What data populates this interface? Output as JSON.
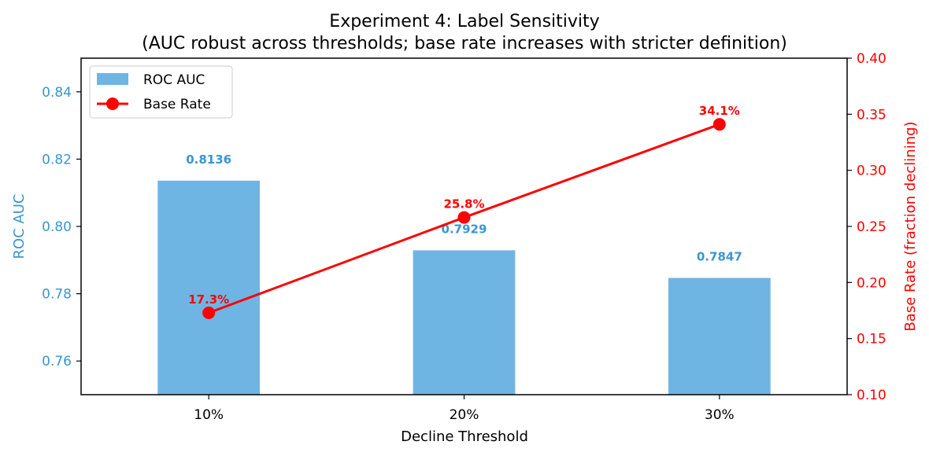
{
  "chart_data": {
    "type": "bar",
    "title": "Experiment 4: Label Sensitivity",
    "subtitle": "(AUC robust across thresholds; base rate increases with stricter definition)",
    "xlabel": "Decline Threshold",
    "categories": [
      "10%",
      "20%",
      "30%"
    ],
    "left_axis": {
      "label": "ROC AUC",
      "ylim": [
        0.75,
        0.85
      ],
      "ticks": [
        0.76,
        0.78,
        0.8,
        0.82,
        0.84
      ],
      "tick_labels": [
        "0.76",
        "0.78",
        "0.80",
        "0.82",
        "0.84"
      ],
      "color": "#3a96d0"
    },
    "right_axis": {
      "label": "Base Rate (fraction declining)",
      "ylim": [
        0.1,
        0.4
      ],
      "ticks": [
        0.1,
        0.15,
        0.2,
        0.25,
        0.3,
        0.35,
        0.4
      ],
      "tick_labels": [
        "0.10",
        "0.15",
        "0.20",
        "0.25",
        "0.30",
        "0.35",
        "0.40"
      ],
      "color": "#ff0000"
    },
    "series": [
      {
        "name": "ROC AUC",
        "type": "bar",
        "axis": "left",
        "values": [
          0.8136,
          0.7929,
          0.7847
        ],
        "labels": [
          "0.8136",
          "0.7929",
          "0.7847"
        ],
        "color": "#6fb5e4",
        "label_color": "#3a96d0"
      },
      {
        "name": "Base Rate",
        "type": "line",
        "axis": "right",
        "values": [
          0.173,
          0.258,
          0.341
        ],
        "labels": [
          "17.3%",
          "25.8%",
          "34.1%"
        ],
        "color": "#ff0000"
      }
    ],
    "legend": {
      "position": "top-left"
    },
    "grid": false
  }
}
